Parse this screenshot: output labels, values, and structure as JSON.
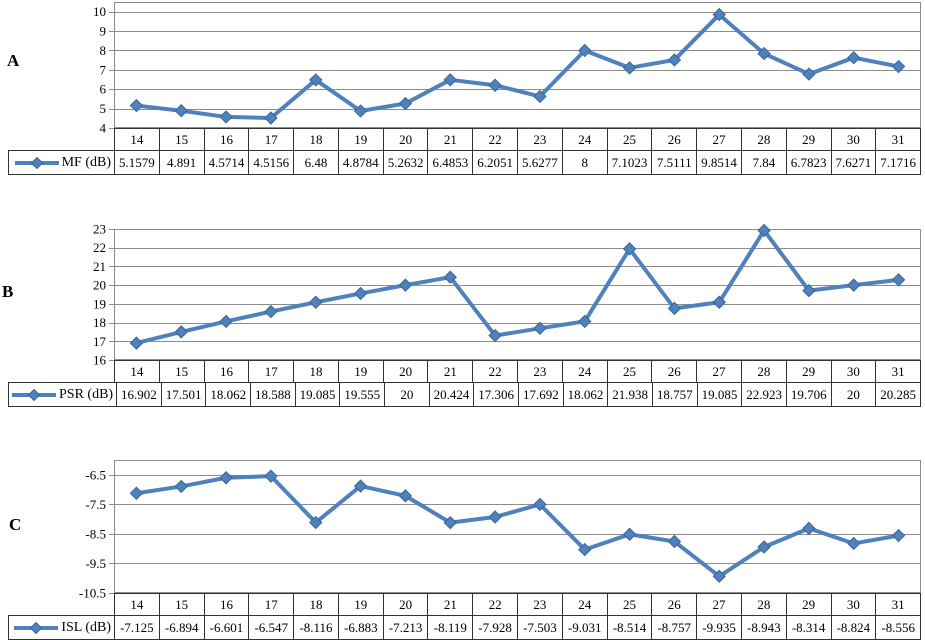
{
  "styles": {
    "line_color": "#4F81BD",
    "marker_edge_color": "#3A6596",
    "grid_color": "#8C8C8C",
    "table_border_color": "#333333",
    "background": "#FFFFFF"
  },
  "chart_data": [
    {
      "type": "line",
      "panel": "A",
      "categories": [
        14,
        15,
        16,
        17,
        18,
        19,
        20,
        21,
        22,
        23,
        24,
        25,
        26,
        27,
        28,
        29,
        30,
        31
      ],
      "series": [
        {
          "name": "MF (dB)",
          "values": [
            5.1579,
            4.891,
            4.5714,
            4.5156,
            6.48,
            4.8784,
            5.2632,
            6.4853,
            6.2051,
            5.6277,
            8,
            7.1023,
            7.5111,
            9.8514,
            7.84,
            6.7823,
            7.6271,
            7.1716
          ]
        }
      ],
      "ylim": [
        4,
        10.5
      ],
      "yticks": [
        10,
        9,
        8,
        7,
        6,
        5,
        4
      ],
      "xlabel": "",
      "ylabel": "",
      "grid": "horizontal",
      "legend_position": "data-table-left",
      "marker": "diamond"
    },
    {
      "type": "line",
      "panel": "B",
      "categories": [
        14,
        15,
        16,
        17,
        18,
        19,
        20,
        21,
        22,
        23,
        24,
        25,
        26,
        27,
        28,
        29,
        30,
        31
      ],
      "series": [
        {
          "name": "PSR (dB)",
          "values": [
            16.902,
            17.501,
            18.062,
            18.588,
            19.085,
            19.555,
            20,
            20.424,
            17.306,
            17.692,
            18.062,
            21.938,
            18.757,
            19.085,
            22.923,
            19.706,
            20,
            20.285
          ]
        }
      ],
      "ylim": [
        16,
        23
      ],
      "yticks": [
        23,
        22,
        21,
        20,
        19,
        18,
        17,
        16
      ],
      "xlabel": "",
      "ylabel": "",
      "grid": "horizontal",
      "legend_position": "data-table-left",
      "marker": "diamond"
    },
    {
      "type": "line",
      "panel": "C",
      "categories": [
        14,
        15,
        16,
        17,
        18,
        19,
        20,
        21,
        22,
        23,
        24,
        25,
        26,
        27,
        28,
        29,
        30,
        31
      ],
      "series": [
        {
          "name": "ISL (dB)",
          "values": [
            -7.125,
            -6.894,
            -6.601,
            -6.547,
            -8.116,
            -6.883,
            -7.213,
            -8.119,
            -7.928,
            -7.503,
            -9.031,
            -8.514,
            -8.757,
            -9.935,
            -8.943,
            -8.314,
            -8.824,
            -8.556
          ]
        }
      ],
      "ylim": [
        -10.5,
        -6
      ],
      "yticks": [
        -6.5,
        -7.5,
        -8.5,
        -9.5,
        -10.5
      ],
      "xlabel": "",
      "ylabel": "",
      "grid": "horizontal",
      "legend_position": "data-table-left",
      "marker": "diamond"
    }
  ]
}
